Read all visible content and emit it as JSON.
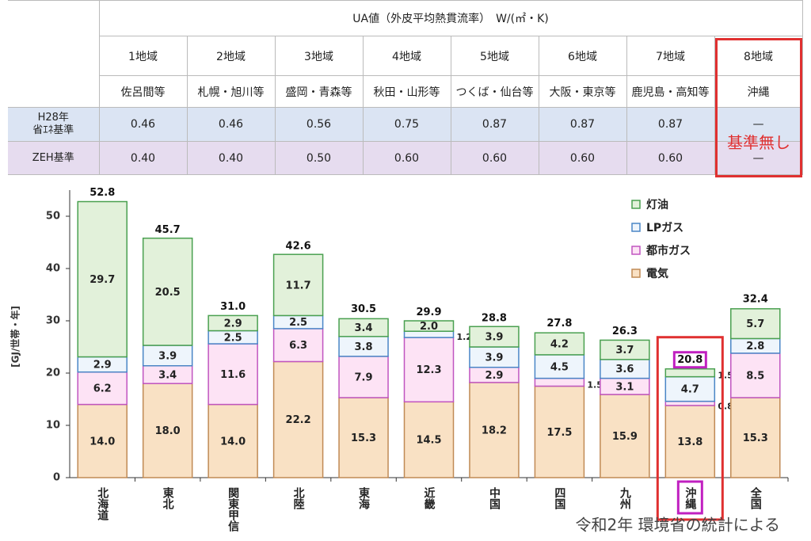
{
  "table": {
    "header": "UA値（外皮平均熱貫流率）　W/(㎡・K)",
    "regions": [
      "1地域",
      "2地域",
      "3地域",
      "4地域",
      "5地域",
      "6地域",
      "7地域",
      "8地域"
    ],
    "areas": [
      "佐呂間等",
      "札幌・旭川等",
      "盛岡・青森等",
      "秋田・山形等",
      "つくば・仙台等",
      "大阪・東京等",
      "鹿児島・高知等",
      "沖縄"
    ],
    "rows": [
      {
        "label": [
          "H28年",
          "省ｴﾈ基準"
        ],
        "values": [
          "0.46",
          "0.46",
          "0.56",
          "0.75",
          "0.87",
          "0.87",
          "0.87",
          "—"
        ]
      },
      {
        "label": [
          "ZEH基準"
        ],
        "values": [
          "0.40",
          "0.40",
          "0.50",
          "0.60",
          "0.60",
          "0.60",
          "0.60",
          "—"
        ]
      }
    ],
    "note": "基準無し"
  },
  "chart_data": {
    "type": "stacked_bar",
    "y_label": "[GJ/世帯・年]",
    "categories": [
      "北海道",
      "東北",
      "関東甲信",
      "北陸",
      "東海",
      "近畿",
      "中国",
      "四国",
      "九州",
      "沖縄",
      "全国"
    ],
    "series": [
      {
        "name": "電気",
        "color": "#f9e1c4",
        "edge": "#c08a55",
        "values": [
          14.0,
          18.0,
          14.0,
          22.2,
          15.3,
          14.5,
          18.2,
          17.5,
          15.9,
          13.8,
          15.3
        ],
        "value_labels": [
          "14.0",
          "18.0",
          "14.0",
          "22.2",
          "15.3",
          "14.5",
          "18.2",
          "17.5",
          "15.9",
          "13.8",
          "15.3"
        ]
      },
      {
        "name": "都市ガス",
        "color": "#fde3f5",
        "edge": "#c055c0",
        "values": [
          6.2,
          3.4,
          11.6,
          6.3,
          7.9,
          12.3,
          2.9,
          1.5,
          3.1,
          0.8,
          8.5
        ],
        "value_labels": [
          "6.2",
          "3.4",
          "11.6",
          "6.3",
          "7.9",
          "12.3",
          "2.9",
          "1.5",
          "3.1",
          "0.8",
          "8.5"
        ]
      },
      {
        "name": "LPガス",
        "color": "#eef5fc",
        "edge": "#4a86c6",
        "values": [
          2.9,
          3.9,
          2.5,
          2.5,
          3.8,
          1.2,
          3.9,
          4.5,
          3.6,
          4.7,
          2.8
        ],
        "value_labels": [
          "2.9",
          "3.9",
          "2.5",
          "2.5",
          "3.8",
          "1.2",
          "3.9",
          "4.5",
          "3.6",
          "4.7",
          "2.8"
        ]
      },
      {
        "name": "灯油",
        "color": "#e2f1da",
        "edge": "#4aa050",
        "values": [
          29.7,
          20.5,
          2.9,
          11.7,
          3.4,
          2.0,
          3.9,
          4.2,
          3.7,
          1.5,
          5.7
        ],
        "value_labels": [
          "29.7",
          "20.5",
          "2.9",
          "11.7",
          "3.4",
          "2.0",
          "3.9",
          "4.2",
          "3.7",
          "1.5",
          "5.7"
        ]
      }
    ],
    "totals": [
      52.8,
      45.7,
      31.0,
      42.6,
      30.5,
      29.9,
      28.8,
      27.8,
      26.3,
      20.8,
      32.4
    ],
    "total_labels": [
      "52.8",
      "45.7",
      "31.0",
      "42.6",
      "30.5",
      "29.9",
      "28.8",
      "27.8",
      "26.3",
      "20.8",
      "32.4"
    ],
    "ylim": [
      0,
      55
    ],
    "yticks": [
      0,
      10,
      20,
      30,
      40,
      50
    ],
    "legend": "upper right",
    "highlight": "沖縄",
    "source": "令和2年 環境省の統計による"
  }
}
